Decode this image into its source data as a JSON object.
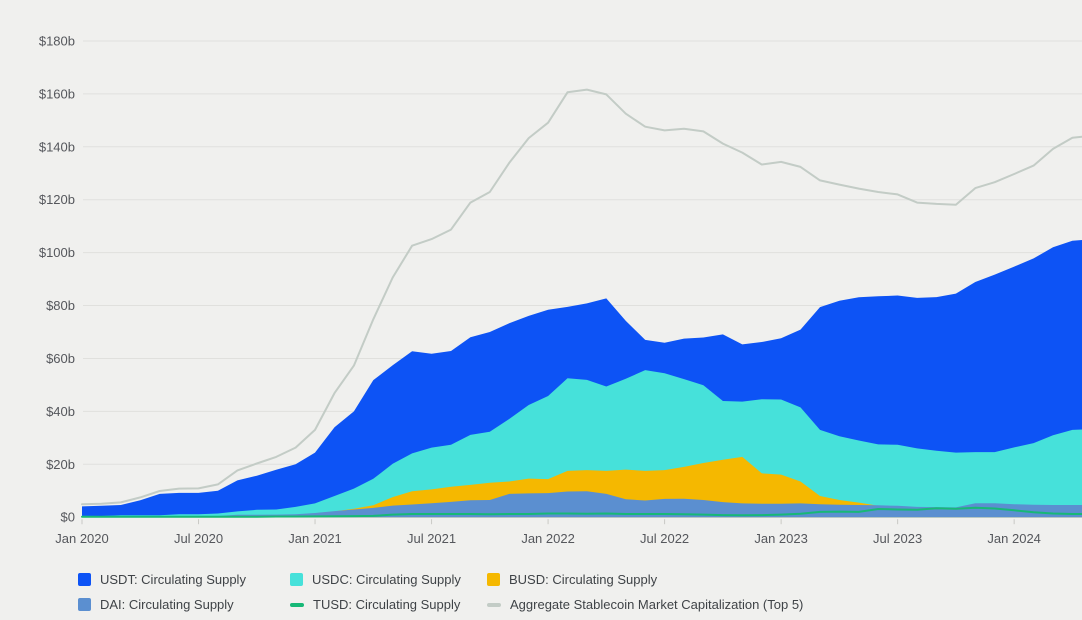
{
  "chart_data": {
    "type": "area",
    "description": "Overlapping area/line chart of stablecoin circulating supplies, Jan 2020 - early Apr 2024, monthly points (index 0 = Jan 2020)",
    "ylabel": "",
    "xlabel": "",
    "ylim": [
      0,
      185
    ],
    "grid": true,
    "legend_position": "bottom",
    "y_ticks": [
      {
        "v": 180,
        "label": "$180b"
      },
      {
        "v": 160,
        "label": "$160b"
      },
      {
        "v": 140,
        "label": "$140b"
      },
      {
        "v": 120,
        "label": "$120b"
      },
      {
        "v": 100,
        "label": "$100b"
      },
      {
        "v": 80,
        "label": "$80b"
      },
      {
        "v": 60,
        "label": "$60b"
      },
      {
        "v": 40,
        "label": "$40b"
      },
      {
        "v": 20,
        "label": "$20b"
      },
      {
        "v": 0,
        "label": "$0"
      }
    ],
    "x_ticks": [
      {
        "i": 0,
        "label": "Jan 2020"
      },
      {
        "i": 6,
        "label": "Jul 2020"
      },
      {
        "i": 12,
        "label": "Jan 2021"
      },
      {
        "i": 18,
        "label": "Jul 2021"
      },
      {
        "i": 24,
        "label": "Jan 2022"
      },
      {
        "i": 30,
        "label": "Jul 2022"
      },
      {
        "i": 36,
        "label": "Jan 2023"
      },
      {
        "i": 42,
        "label": "Jul 2023"
      },
      {
        "i": 48,
        "label": "Jan 2024"
      }
    ],
    "series": [
      {
        "name": "USDT",
        "label": "USDT: Circulating Supply",
        "kind": "area",
        "color": "#0D53F5",
        "values": [
          4.1,
          4.3,
          4.6,
          6.4,
          8.8,
          9.2,
          9.2,
          10.0,
          13.9,
          15.7,
          17.9,
          20.0,
          24.4,
          34.0,
          40.0,
          51.8,
          57.4,
          62.7,
          61.8,
          62.8,
          68.0,
          70.0,
          73.3,
          76.1,
          78.4,
          79.5,
          80.8,
          82.7,
          74.2,
          67.0,
          65.9,
          67.5,
          67.9,
          69.1,
          65.3,
          66.2,
          67.6,
          70.9,
          79.4,
          81.8,
          83.1,
          83.5,
          83.8,
          82.9,
          83.2,
          84.5,
          88.9,
          91.7,
          94.7,
          97.8,
          102.0,
          104.5,
          105.0
        ]
      },
      {
        "name": "USDC",
        "label": "USDC: Circulating Supply",
        "kind": "area",
        "color": "#46E1DA",
        "values": [
          0.5,
          0.45,
          0.7,
          0.73,
          0.73,
          1.1,
          1.1,
          1.4,
          2.2,
          2.8,
          2.9,
          3.9,
          5.2,
          8.0,
          10.8,
          14.5,
          20.2,
          24.1,
          26.3,
          27.4,
          31.1,
          32.3,
          37.1,
          42.4,
          45.8,
          52.5,
          51.9,
          49.4,
          52.3,
          55.6,
          54.4,
          52.2,
          49.9,
          43.9,
          43.7,
          44.6,
          44.5,
          41.5,
          33.0,
          30.6,
          29.0,
          27.5,
          27.4,
          26.0,
          25.1,
          24.4,
          24.6,
          24.6,
          26.4,
          28.0,
          31.0,
          33.0,
          33.3
        ]
      },
      {
        "name": "BUSD",
        "label": "BUSD: Circulating Supply",
        "kind": "area",
        "color": "#F5B800",
        "values": [
          0.03,
          0.05,
          0.1,
          0.15,
          0.15,
          0.2,
          0.23,
          0.4,
          0.55,
          0.65,
          0.7,
          1.0,
          1.5,
          2.2,
          3.2,
          4.5,
          7.6,
          9.8,
          10.5,
          11.5,
          12.2,
          13.0,
          13.5,
          14.6,
          14.4,
          17.5,
          17.8,
          17.5,
          18.0,
          17.5,
          17.8,
          19.0,
          20.5,
          21.7,
          22.8,
          16.6,
          16.1,
          13.5,
          8.0,
          6.5,
          5.5,
          4.3,
          3.6,
          3.3,
          2.9,
          2.3,
          2.0,
          1.7,
          1.1,
          0.5,
          0.2,
          0.1,
          0.1
        ]
      },
      {
        "name": "DAI",
        "label": "DAI: Circulating Supply",
        "kind": "area",
        "color": "#5B8FD0",
        "values": [
          0.12,
          0.13,
          0.09,
          0.09,
          0.12,
          0.13,
          0.25,
          0.45,
          0.9,
          0.93,
          1.0,
          1.1,
          1.6,
          2.3,
          2.9,
          3.5,
          4.4,
          4.8,
          5.3,
          5.8,
          6.4,
          6.5,
          8.8,
          9.0,
          9.1,
          9.7,
          9.8,
          8.8,
          6.8,
          6.3,
          6.9,
          7.0,
          6.5,
          5.7,
          5.2,
          5.1,
          5.1,
          5.2,
          4.9,
          4.7,
          4.6,
          4.5,
          4.3,
          3.9,
          3.8,
          3.7,
          5.3,
          5.3,
          4.9,
          4.7,
          4.6,
          4.6,
          4.6
        ]
      },
      {
        "name": "TUSD",
        "label": "TUSD: Circulating Supply",
        "kind": "line",
        "color": "#17B877",
        "values": [
          0.14,
          0.14,
          0.14,
          0.14,
          0.14,
          0.14,
          0.14,
          0.15,
          0.18,
          0.2,
          0.25,
          0.28,
          0.3,
          0.35,
          0.4,
          0.5,
          1.0,
          1.2,
          1.2,
          1.2,
          1.2,
          1.1,
          1.2,
          1.2,
          1.4,
          1.4,
          1.3,
          1.4,
          1.2,
          1.2,
          1.2,
          1.1,
          1.0,
          0.8,
          0.75,
          0.8,
          0.97,
          1.3,
          2.0,
          2.1,
          2.0,
          3.1,
          2.9,
          2.8,
          3.4,
          3.2,
          3.6,
          3.3,
          2.6,
          1.9,
          1.4,
          1.2,
          1.2
        ]
      },
      {
        "name": "Aggregate",
        "label": "Aggregate Stablecoin Market Capitalization (Top 5)",
        "kind": "line",
        "color": "#C3CCC6",
        "values": [
          4.9,
          5.1,
          5.6,
          7.5,
          9.9,
          10.8,
          10.9,
          12.4,
          17.7,
          20.3,
          22.8,
          26.3,
          33.0,
          46.9,
          57.3,
          74.8,
          90.6,
          102.6,
          105.1,
          108.7,
          118.9,
          122.9,
          133.9,
          143.3,
          149.1,
          160.6,
          161.6,
          159.8,
          152.5,
          147.6,
          146.2,
          146.8,
          145.8,
          141.2,
          137.8,
          133.3,
          134.3,
          132.4,
          127.3,
          125.7,
          124.2,
          122.9,
          122.0,
          118.9,
          118.4,
          118.1,
          124.4,
          126.6,
          129.7,
          132.9,
          139.2,
          143.4,
          144.2
        ]
      }
    ],
    "colors": {
      "background": "#F0F0EE",
      "grid": "#E0E0DD",
      "axis_text": "#55575C",
      "legend_text": "#3F4347",
      "tick_mark": "#C9C9C5"
    }
  }
}
